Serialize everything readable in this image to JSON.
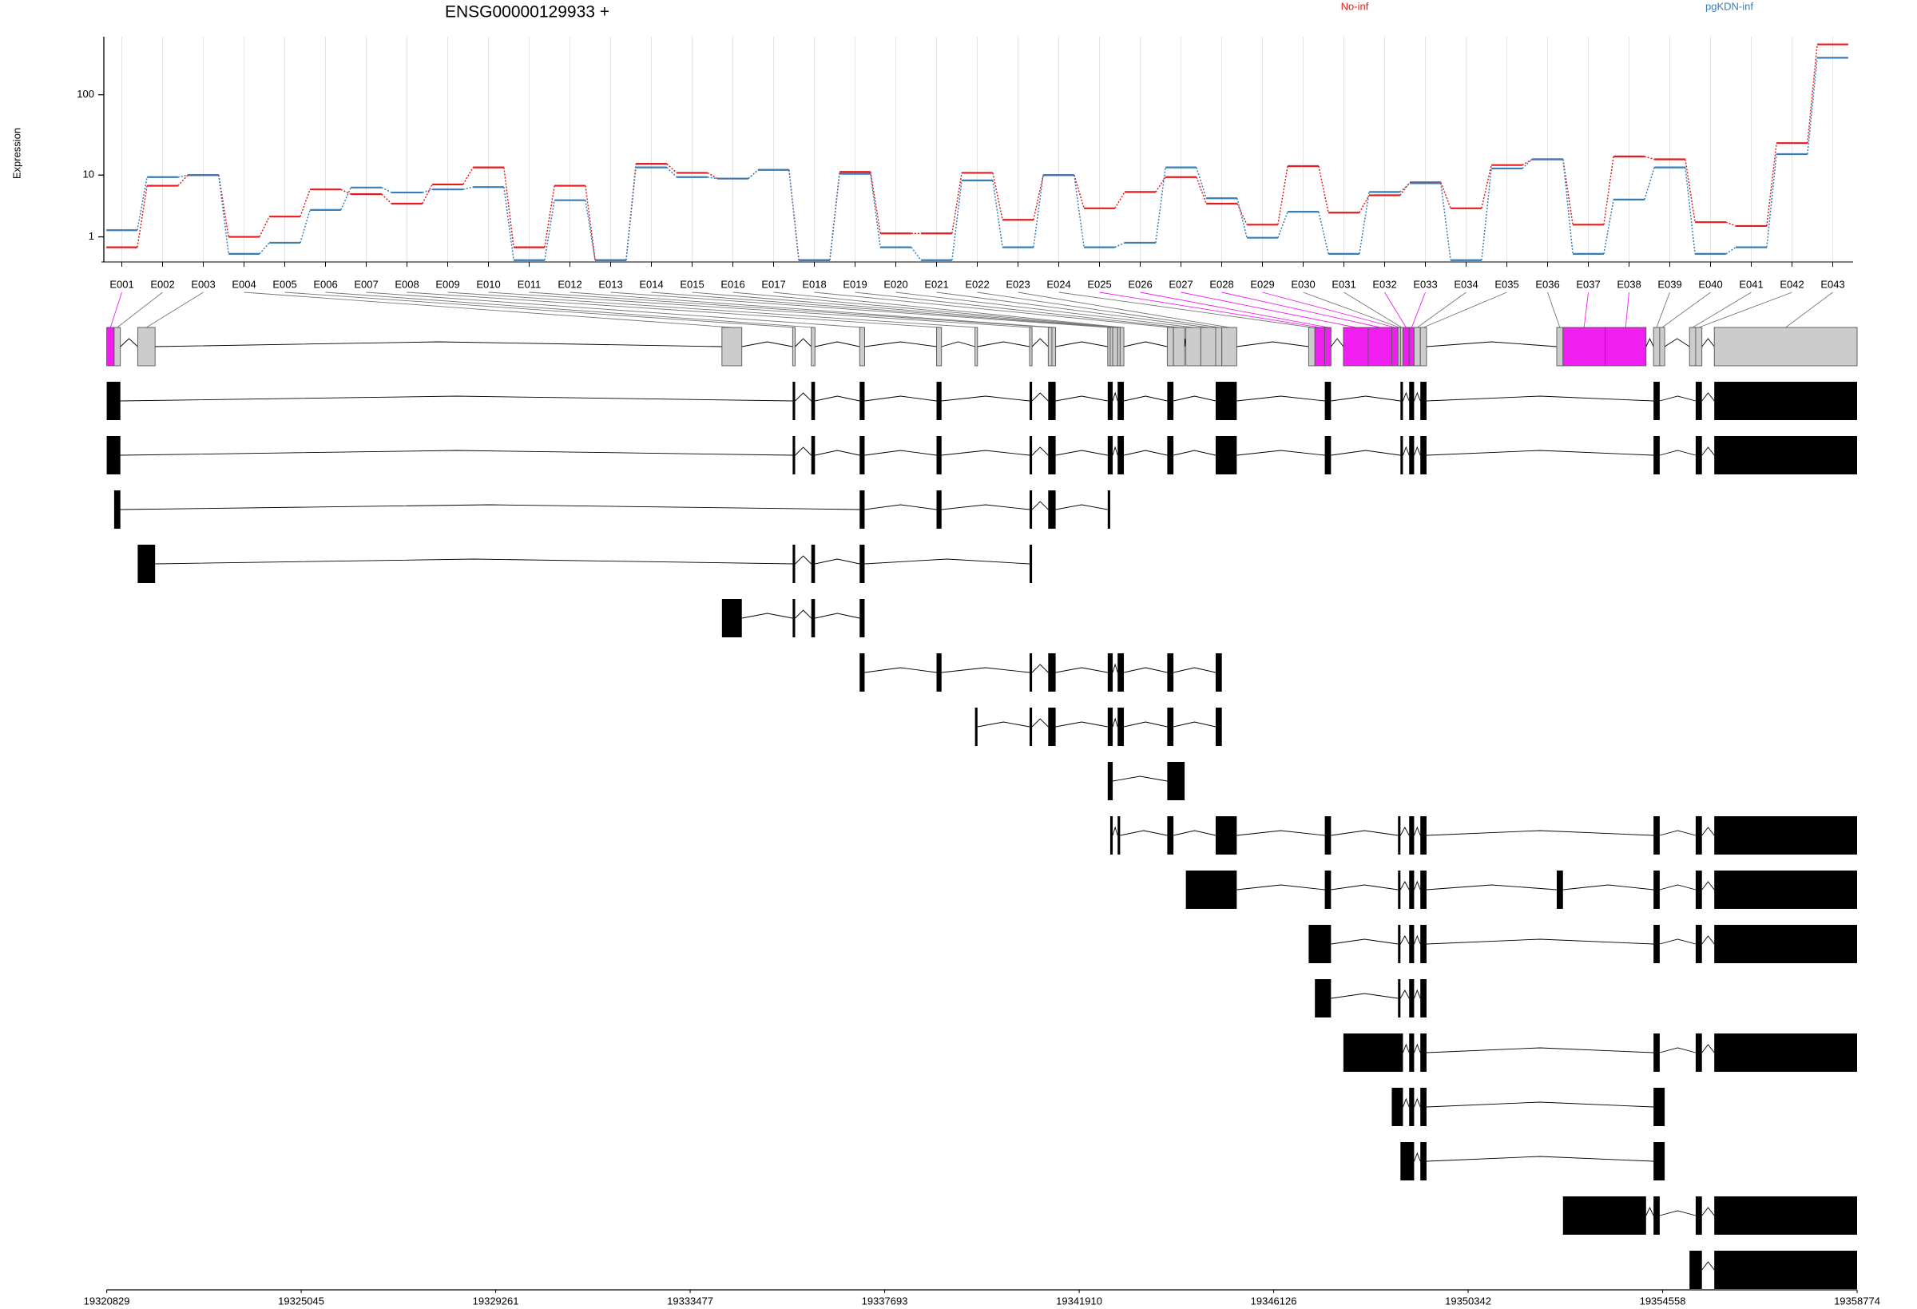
{
  "chart_data": {
    "type": "line",
    "title": "ENSG00000129933 +",
    "y_label": "Expression",
    "y_scale": "log1p",
    "categories": [
      "E001",
      "E002",
      "E003",
      "E004",
      "E005",
      "E006",
      "E007",
      "E008",
      "E009",
      "E010",
      "E011",
      "E012",
      "E013",
      "E014",
      "E015",
      "E016",
      "E017",
      "E018",
      "E019",
      "E020",
      "E021",
      "E022",
      "E023",
      "E024",
      "E025",
      "E026",
      "E027",
      "E028",
      "E029",
      "E030",
      "E031",
      "E032",
      "E033",
      "E034",
      "E035",
      "E036",
      "E037",
      "E038",
      "E039",
      "E040",
      "E041",
      "E042",
      "E043"
    ],
    "series": [
      {
        "name": "No-inf",
        "color": "#e41a1c",
        "values": [
          0.5,
          7.2,
          10,
          1,
          2.5,
          6.4,
          5.5,
          4,
          7.5,
          12.6,
          0.5,
          7.2,
          0.05,
          14,
          10.7,
          9,
          11.7,
          0.05,
          11,
          1.2,
          1.2,
          10.7,
          2.2,
          10,
          3.4,
          5.9,
          9.4,
          4,
          1.8,
          13.1,
          2.9,
          5.3,
          8,
          3.4,
          13.5,
          16,
          1.8,
          17.4,
          16,
          2,
          1.7,
          25.6,
          405
        ]
      },
      {
        "name": "pgKDN-inf",
        "color": "#377eb8",
        "values": [
          1.4,
          9.4,
          10,
          0.25,
          0.7,
          3.2,
          6.8,
          5.8,
          6.4,
          6.9,
          0.05,
          4.5,
          0.05,
          12.6,
          9.4,
          9,
          11.7,
          0.05,
          10.4,
          0.5,
          0.05,
          8.5,
          0.5,
          10,
          0.5,
          0.7,
          12.6,
          4.8,
          0.95,
          3,
          0.25,
          5.9,
          7.8,
          0.05,
          12.2,
          16,
          0.25,
          4.6,
          12.6,
          0.25,
          0.5,
          18.6,
          279
        ]
      }
    ],
    "ylim": [
      0,
      500
    ],
    "yticks": [
      1,
      10,
      100
    ],
    "grid": true,
    "gene_model": {
      "xlim": [
        19320829,
        19358774
      ],
      "xticks": [
        19320829,
        19325045,
        19329261,
        19333477,
        19337693,
        19341910,
        19346126,
        19350342,
        19354558,
        19358774
      ],
      "exon_color": "#cccccc",
      "highlight_color": "#f01ef0",
      "transcript_color": "#000000",
      "exons": [
        [
          19320829,
          19320990
        ],
        [
          19320990,
          19321125
        ],
        [
          19321501,
          19321878
        ],
        [
          19334166,
          19334597
        ],
        [
          19335699,
          19335753
        ],
        [
          19336103,
          19336183
        ],
        [
          19337151,
          19337259
        ],
        [
          19338818,
          19338926
        ],
        [
          19339652,
          19339706
        ],
        [
          19340835,
          19340889
        ],
        [
          19341239,
          19341319
        ],
        [
          19341319,
          19341400
        ],
        [
          19342529,
          19342583
        ],
        [
          19342583,
          19342637
        ],
        [
          19342637,
          19342744
        ],
        [
          19342744,
          19342798
        ],
        [
          19342798,
          19342879
        ],
        [
          19343820,
          19343954
        ],
        [
          19343954,
          19344196
        ],
        [
          19344223,
          19344546
        ],
        [
          19344546,
          19344869
        ],
        [
          19344869,
          19345003
        ],
        [
          19345003,
          19345326
        ],
        [
          19346885,
          19347020
        ],
        [
          19347020,
          19347235
        ],
        [
          19347235,
          19347369
        ],
        [
          19347638,
          19348176
        ],
        [
          19348176,
          19348687
        ],
        [
          19348687,
          19348822
        ],
        [
          19348822,
          19348875
        ],
        [
          19348875,
          19348929
        ],
        [
          19348929,
          19349064
        ],
        [
          19349064,
          19349171
        ],
        [
          19349171,
          19349306
        ],
        [
          19349306,
          19349440
        ],
        [
          19352263,
          19352398
        ],
        [
          19352398,
          19353312
        ],
        [
          19353312,
          19354199
        ],
        [
          19354361,
          19354495
        ],
        [
          19354495,
          19354603
        ],
        [
          19355141,
          19355275
        ],
        [
          19355275,
          19355410
        ],
        [
          19355678,
          19358774
        ]
      ],
      "highlighted": [
        true,
        false,
        false,
        false,
        false,
        false,
        false,
        false,
        false,
        false,
        false,
        false,
        false,
        false,
        false,
        false,
        false,
        false,
        false,
        false,
        false,
        false,
        false,
        false,
        true,
        true,
        true,
        true,
        true,
        false,
        false,
        true,
        true,
        false,
        false,
        false,
        true,
        true,
        false,
        false,
        false,
        false,
        false
      ],
      "transcripts": [
        [
          0,
          1,
          4,
          5,
          6,
          7,
          9,
          10,
          11,
          12,
          13,
          15,
          16,
          17,
          21,
          22,
          25,
          30,
          32,
          34,
          38,
          41,
          42
        ],
        [
          0,
          1,
          4,
          5,
          6,
          7,
          9,
          10,
          11,
          12,
          13,
          15,
          16,
          17,
          21,
          22,
          25,
          30,
          32,
          34,
          38,
          41,
          42
        ],
        [
          1,
          6,
          7,
          9,
          10,
          11,
          12
        ],
        [
          2,
          4,
          5,
          6,
          9
        ],
        [
          3,
          4,
          5,
          6
        ],
        [
          6,
          7,
          9,
          10,
          11,
          12,
          13,
          15,
          16,
          17,
          21
        ],
        [
          8,
          9,
          10,
          11,
          12,
          13,
          15,
          16,
          17,
          21
        ],
        [
          12,
          13,
          17,
          18
        ],
        [
          13,
          15,
          17,
          21,
          22,
          25,
          29,
          32,
          34,
          38,
          41,
          42
        ],
        [
          19,
          20,
          21,
          22,
          25,
          29,
          32,
          34,
          35,
          38,
          41,
          42
        ],
        [
          23,
          24,
          25,
          29,
          32,
          34,
          38,
          41,
          42
        ],
        [
          24,
          25,
          29,
          32,
          34
        ],
        [
          26,
          27,
          28,
          29,
          30,
          32,
          34,
          38,
          41,
          42
        ],
        [
          28,
          29,
          30,
          32,
          34,
          38,
          39
        ],
        [
          30,
          31,
          32,
          34,
          38,
          39
        ],
        [
          36,
          37,
          38,
          41,
          42
        ],
        [
          40,
          41,
          42
        ]
      ]
    }
  }
}
